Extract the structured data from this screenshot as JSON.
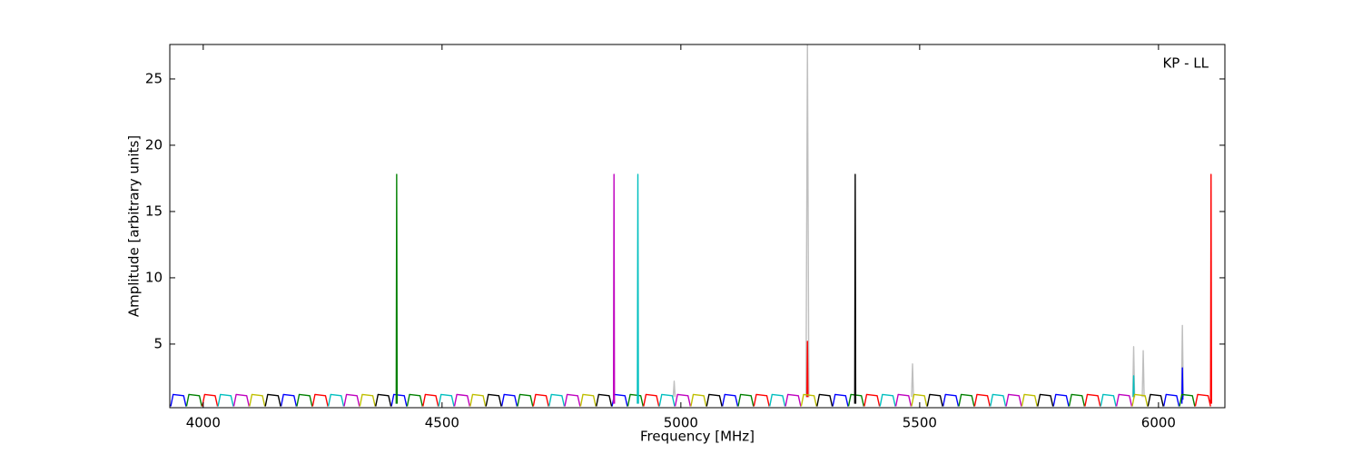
{
  "chart_data": {
    "type": "line",
    "annotation": "KP - LL",
    "x_label": "Frequency [MHz]",
    "y_label": "Amplitude [arbitrary units]",
    "xlim": [
      3930,
      6139
    ],
    "ylim": [
      0.2,
      27.6
    ],
    "xticks": [
      4000,
      4500,
      5000,
      5500,
      6000
    ],
    "yticks": [
      5,
      10,
      15,
      20,
      25
    ],
    "grid": false,
    "series": [
      {
        "color": "#bfbfbf",
        "x": [
          5262,
          5265,
          5268,
          null,
          4984,
          4986,
          4988,
          null,
          5483,
          5485,
          5487,
          null,
          5946,
          5948,
          5950,
          null,
          5966,
          5968,
          5970,
          null,
          6048,
          6050,
          6052
        ],
        "values": [
          1,
          27.6,
          1,
          null,
          1,
          2.2,
          1,
          null,
          1,
          3.5,
          1,
          null,
          1,
          4.8,
          1,
          null,
          1,
          4.5,
          1,
          null,
          1,
          6.4,
          1
        ]
      },
      {
        "color": "#0000ff",
        "x": [
          3932,
          3937,
          3959,
          3964,
          null,
          4163,
          4168,
          4190,
          4195,
          null,
          4394,
          4399,
          4421,
          4426,
          null,
          4625,
          4630,
          4652,
          4657,
          null,
          4856,
          4861,
          4883,
          4888,
          null,
          5087,
          5092,
          5114,
          5119,
          null,
          5318,
          5323,
          5345,
          5350,
          null,
          5549,
          5554,
          5576,
          5581,
          null,
          5780,
          5785,
          5807,
          5812,
          null,
          6011,
          6016,
          6038,
          6043,
          null,
          6049,
          6050,
          6051
        ],
        "values": [
          0.3,
          1.2,
          1.1,
          0.3,
          null,
          0.3,
          1.2,
          1.1,
          0.3,
          null,
          0.3,
          1.2,
          1.1,
          0.3,
          null,
          0.3,
          1.2,
          1.1,
          0.3,
          null,
          0.3,
          1.2,
          1.1,
          0.3,
          null,
          0.3,
          1.2,
          1.1,
          0.3,
          null,
          0.3,
          1.2,
          1.1,
          0.3,
          null,
          0.3,
          1.2,
          1.1,
          0.3,
          null,
          0.3,
          1.2,
          1.1,
          0.3,
          null,
          0.3,
          1.2,
          1.1,
          0.3,
          null,
          0.5,
          3.2,
          0.8
        ]
      },
      {
        "color": "#008000",
        "x": [
          3965,
          3970,
          3992,
          3997,
          null,
          4196,
          4201,
          4223,
          4228,
          null,
          4427,
          4432,
          4454,
          4459,
          null,
          4658,
          4663,
          4685,
          4690,
          null,
          4889,
          4894,
          4916,
          4921,
          null,
          5120,
          5125,
          5147,
          5152,
          null,
          5351,
          5356,
          5378,
          5383,
          null,
          5582,
          5587,
          5609,
          5614,
          null,
          5813,
          5818,
          5840,
          5845,
          null,
          6044,
          6049,
          6071,
          6076,
          null,
          4404,
          4405,
          4406
        ],
        "values": [
          0.3,
          1.2,
          1.1,
          0.3,
          null,
          0.3,
          1.2,
          1.1,
          0.3,
          null,
          0.3,
          1.2,
          1.1,
          0.3,
          null,
          0.3,
          1.2,
          1.1,
          0.3,
          null,
          0.3,
          1.2,
          1.1,
          0.3,
          null,
          0.3,
          1.2,
          1.1,
          0.3,
          null,
          0.3,
          1.2,
          1.1,
          0.3,
          null,
          0.3,
          1.2,
          1.1,
          0.3,
          null,
          0.3,
          1.2,
          1.1,
          0.3,
          null,
          0.3,
          1.2,
          1.1,
          0.3,
          null,
          0.5,
          17.8,
          0.5
        ]
      },
      {
        "color": "#ff0000",
        "x": [
          3998,
          4003,
          4025,
          4030,
          null,
          4229,
          4234,
          4256,
          4261,
          null,
          4460,
          4465,
          4487,
          4492,
          null,
          4691,
          4696,
          4718,
          4723,
          null,
          4922,
          4927,
          4949,
          4954,
          null,
          5153,
          5158,
          5180,
          5185,
          null,
          5384,
          5389,
          5411,
          5416,
          null,
          5615,
          5620,
          5642,
          5647,
          null,
          5846,
          5851,
          5873,
          5878,
          null,
          6077,
          6082,
          6104,
          6109,
          null,
          5264,
          5265,
          5266,
          null,
          6109,
          6110,
          6111
        ],
        "values": [
          0.3,
          1.2,
          1.1,
          0.3,
          null,
          0.3,
          1.2,
          1.1,
          0.3,
          null,
          0.3,
          1.2,
          1.1,
          0.3,
          null,
          0.3,
          1.2,
          1.1,
          0.3,
          null,
          0.3,
          1.2,
          1.1,
          0.3,
          null,
          0.3,
          1.2,
          1.1,
          0.3,
          null,
          0.3,
          1.2,
          1.1,
          0.3,
          null,
          0.3,
          1.2,
          1.1,
          0.3,
          null,
          0.3,
          1.2,
          1.1,
          0.3,
          null,
          0.3,
          1.2,
          1.1,
          0.3,
          null,
          1,
          5.2,
          1,
          null,
          0.5,
          17.8,
          0.5
        ]
      },
      {
        "color": "#00bfbf",
        "x": [
          4031,
          4036,
          4058,
          4063,
          null,
          4262,
          4267,
          4289,
          4294,
          null,
          4493,
          4498,
          4520,
          4525,
          null,
          4724,
          4729,
          4751,
          4756,
          null,
          4955,
          4960,
          4982,
          4987,
          null,
          5186,
          5191,
          5213,
          5218,
          null,
          5417,
          5422,
          5444,
          5449,
          null,
          5648,
          5653,
          5675,
          5680,
          null,
          5879,
          5884,
          5906,
          5911,
          null,
          4909,
          4910,
          4911,
          null,
          5947,
          5948,
          5949
        ],
        "values": [
          0.3,
          1.2,
          1.1,
          0.3,
          null,
          0.3,
          1.2,
          1.1,
          0.3,
          null,
          0.3,
          1.2,
          1.1,
          0.3,
          null,
          0.3,
          1.2,
          1.1,
          0.3,
          null,
          0.3,
          1.2,
          1.1,
          0.3,
          null,
          0.3,
          1.2,
          1.1,
          0.3,
          null,
          0.3,
          1.2,
          1.1,
          0.3,
          null,
          0.3,
          1.2,
          1.1,
          0.3,
          null,
          0.3,
          1.2,
          1.1,
          0.3,
          null,
          0.5,
          17.8,
          0.5,
          null,
          1,
          2.6,
          1
        ]
      },
      {
        "color": "#bf00bf",
        "x": [
          4064,
          4069,
          4091,
          4096,
          null,
          4295,
          4300,
          4322,
          4327,
          null,
          4526,
          4531,
          4553,
          4558,
          null,
          4757,
          4762,
          4784,
          4789,
          null,
          4988,
          4993,
          5015,
          5020,
          null,
          5219,
          5224,
          5246,
          5251,
          null,
          5450,
          5455,
          5477,
          5482,
          null,
          5681,
          5686,
          5708,
          5713,
          null,
          5912,
          5917,
          5939,
          5944,
          null,
          4859,
          4860,
          4861
        ],
        "values": [
          0.3,
          1.2,
          1.1,
          0.3,
          null,
          0.3,
          1.2,
          1.1,
          0.3,
          null,
          0.3,
          1.2,
          1.1,
          0.3,
          null,
          0.3,
          1.2,
          1.1,
          0.3,
          null,
          0.3,
          1.2,
          1.1,
          0.3,
          null,
          0.3,
          1.2,
          1.1,
          0.3,
          null,
          0.3,
          1.2,
          1.1,
          0.3,
          null,
          0.3,
          1.2,
          1.1,
          0.3,
          null,
          0.3,
          1.2,
          1.1,
          0.3,
          null,
          0.5,
          17.8,
          0.5
        ]
      },
      {
        "color": "#bfbf00",
        "x": [
          4097,
          4102,
          4124,
          4129,
          null,
          4328,
          4333,
          4355,
          4360,
          null,
          4559,
          4564,
          4586,
          4591,
          null,
          4790,
          4795,
          4817,
          4822,
          null,
          5021,
          5026,
          5048,
          5053,
          null,
          5252,
          5257,
          5279,
          5284,
          null,
          5483,
          5488,
          5510,
          5515,
          null,
          5714,
          5719,
          5741,
          5746,
          null,
          5945,
          5950,
          5972,
          5977
        ],
        "values": [
          0.3,
          1.2,
          1.1,
          0.3,
          null,
          0.3,
          1.2,
          1.1,
          0.3,
          null,
          0.3,
          1.2,
          1.1,
          0.3,
          null,
          0.3,
          1.2,
          1.1,
          0.3,
          null,
          0.3,
          1.2,
          1.1,
          0.3,
          null,
          0.3,
          1.2,
          1.1,
          0.3,
          null,
          0.3,
          1.2,
          1.1,
          0.3,
          null,
          0.3,
          1.2,
          1.1,
          0.3,
          null,
          0.3,
          1.2,
          1.1,
          0.3
        ]
      },
      {
        "color": "#000000",
        "x": [
          4130,
          4135,
          4157,
          4162,
          null,
          4361,
          4366,
          4388,
          4393,
          null,
          4592,
          4597,
          4619,
          4624,
          null,
          4823,
          4828,
          4850,
          4855,
          null,
          5054,
          5059,
          5081,
          5086,
          null,
          5285,
          5290,
          5312,
          5317,
          null,
          5516,
          5521,
          5543,
          5548,
          null,
          5747,
          5752,
          5774,
          5779,
          null,
          5978,
          5983,
          6005,
          6010,
          null,
          5364,
          5365,
          5366
        ],
        "values": [
          0.3,
          1.2,
          1.1,
          0.3,
          null,
          0.3,
          1.2,
          1.1,
          0.3,
          null,
          0.3,
          1.2,
          1.1,
          0.3,
          null,
          0.3,
          1.2,
          1.1,
          0.3,
          null,
          0.3,
          1.2,
          1.1,
          0.3,
          null,
          0.3,
          1.2,
          1.1,
          0.3,
          null,
          0.3,
          1.2,
          1.1,
          0.3,
          null,
          0.3,
          1.2,
          1.1,
          0.3,
          null,
          0.3,
          1.2,
          1.1,
          0.3,
          null,
          0.5,
          17.8,
          0.5
        ]
      }
    ]
  }
}
